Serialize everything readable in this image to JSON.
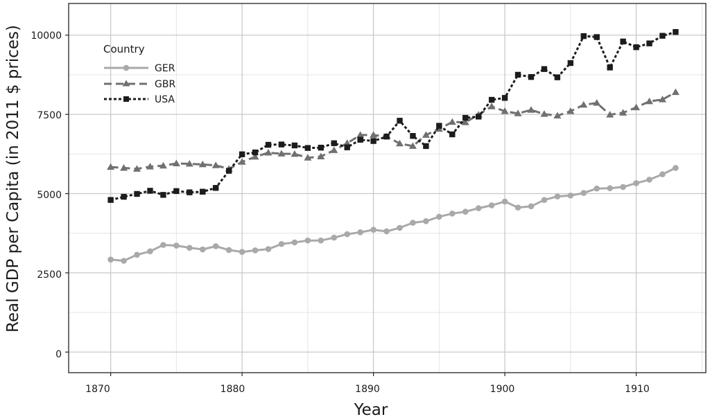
{
  "chart_data": {
    "type": "line",
    "xlabel": "Year",
    "ylabel": "Real GDP per Capita (in 2011 $ prices)",
    "x_ticks": [
      "1870",
      "1880",
      "1890",
      "1900",
      "1910"
    ],
    "y_ticks": [
      "0",
      "2500",
      "5000",
      "7500",
      "10000"
    ],
    "xlim": [
      1866.8,
      1915.3
    ],
    "ylim": [
      -650,
      11000
    ],
    "grid": true,
    "legend": {
      "title": "Country",
      "position": "top-left"
    },
    "x": [
      1870,
      1871,
      1872,
      1873,
      1874,
      1875,
      1876,
      1877,
      1878,
      1879,
      1880,
      1881,
      1882,
      1883,
      1884,
      1885,
      1886,
      1887,
      1888,
      1889,
      1890,
      1891,
      1892,
      1893,
      1894,
      1895,
      1896,
      1897,
      1898,
      1899,
      1900,
      1901,
      1902,
      1903,
      1904,
      1905,
      1906,
      1907,
      1908,
      1909,
      1910,
      1911,
      1912,
      1913
    ],
    "series": [
      {
        "name": "GER",
        "line_style": "solid",
        "marker": "circle",
        "color": "#a9a9a9",
        "values": [
          2920,
          2880,
          3070,
          3180,
          3380,
          3360,
          3290,
          3240,
          3340,
          3220,
          3160,
          3210,
          3250,
          3410,
          3460,
          3520,
          3520,
          3610,
          3720,
          3780,
          3860,
          3810,
          3920,
          4080,
          4130,
          4270,
          4370,
          4430,
          4540,
          4630,
          4750,
          4560,
          4600,
          4800,
          4910,
          4940,
          5020,
          5160,
          5170,
          5210,
          5330,
          5440,
          5610,
          5810
        ]
      },
      {
        "name": "GBR",
        "line_style": "dashed",
        "marker": "triangle",
        "color": "#707070",
        "values": [
          5840,
          5810,
          5780,
          5850,
          5880,
          5950,
          5940,
          5920,
          5890,
          5780,
          6000,
          6160,
          6290,
          6260,
          6250,
          6130,
          6170,
          6370,
          6590,
          6850,
          6850,
          6800,
          6580,
          6500,
          6850,
          7040,
          7260,
          7250,
          7490,
          7750,
          7600,
          7530,
          7640,
          7510,
          7460,
          7600,
          7800,
          7860,
          7490,
          7550,
          7720,
          7910,
          7970,
          8200
        ]
      },
      {
        "name": "USA",
        "line_style": "dotted",
        "marker": "square",
        "color": "#1c1c1c",
        "values": [
          4800,
          4900,
          4990,
          5090,
          4960,
          5080,
          5040,
          5060,
          5180,
          5720,
          6240,
          6300,
          6540,
          6550,
          6520,
          6440,
          6450,
          6590,
          6460,
          6700,
          6660,
          6800,
          7300,
          6820,
          6500,
          7140,
          6870,
          7390,
          7430,
          7960,
          8020,
          8750,
          8680,
          8930,
          8670,
          9120,
          9970,
          9940,
          8980,
          9800,
          9620,
          9740,
          9980,
          10100
        ]
      }
    ]
  }
}
